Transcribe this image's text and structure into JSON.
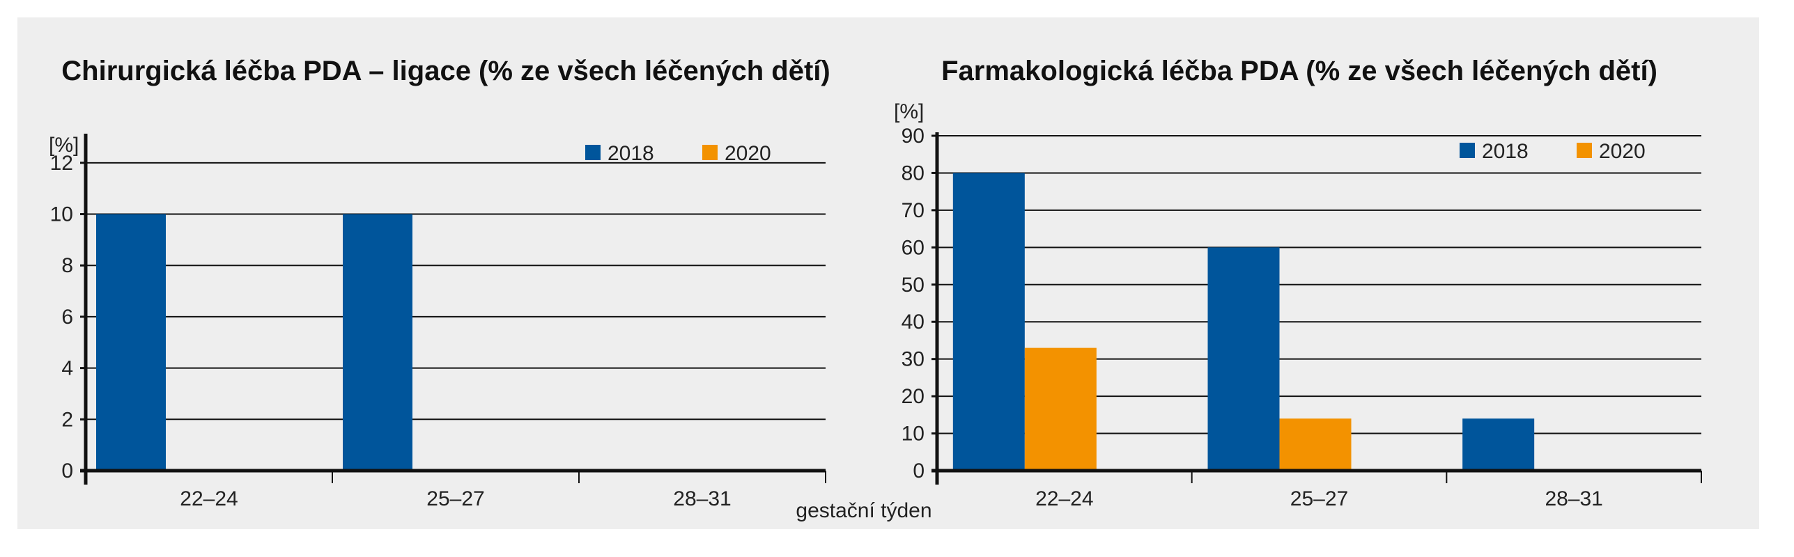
{
  "colors": {
    "s2018": "#00559b",
    "s2020": "#f39200",
    "grid": "#111111",
    "panel": "#eeeeee"
  },
  "xlabel": "gestační týden",
  "chart_data": [
    {
      "type": "bar",
      "title": "Chirurgická léčba PDA – ligace (% ze všech léčených dětí)",
      "ylabel": "[%]",
      "categories": [
        "22–24",
        "25–27",
        "28–31"
      ],
      "ylim": [
        0,
        13
      ],
      "yticks": [
        0,
        2,
        4,
        6,
        8,
        10,
        12
      ],
      "series": [
        {
          "name": "2018",
          "values": [
            10,
            10,
            0
          ]
        },
        {
          "name": "2020",
          "values": [
            0,
            0,
            0
          ]
        }
      ],
      "legend": "top-right",
      "grid": true
    },
    {
      "type": "bar",
      "title": "Farmakologická léčba PDA (% ze všech léčených dětí)",
      "ylabel": "[%]",
      "categories": [
        "22–24",
        "25–27",
        "28–31"
      ],
      "ylim": [
        0,
        90
      ],
      "yticks": [
        0,
        10,
        20,
        30,
        40,
        50,
        60,
        70,
        80,
        90
      ],
      "series": [
        {
          "name": "2018",
          "values": [
            80,
            60,
            14
          ]
        },
        {
          "name": "2020",
          "values": [
            33,
            14,
            0
          ]
        }
      ],
      "legend": "top-right",
      "grid": true
    }
  ]
}
